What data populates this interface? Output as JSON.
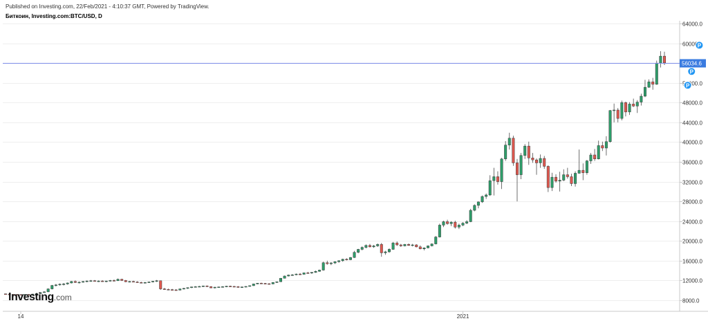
{
  "header": {
    "published": "Published on Investing.com, 22/Feb/2021 - 4:10:37 GMT, Powered by TradingView.",
    "symbol": "Биткоин, Investing.com:BTC/USD, D"
  },
  "logo": {
    "brand": "Investing",
    "domain": ".com"
  },
  "colors": {
    "up": "#26a69a",
    "down": "#ef5350",
    "up_fill": "#2e9e6a",
    "down_fill": "#e0584f",
    "price_line": "#7b8ce8",
    "price_label_bg": "#3a7be0",
    "marker": "#2196f3"
  },
  "chart_data": {
    "type": "candlestick",
    "title": "",
    "y_axis": {
      "position": "right",
      "ylim": [
        6000,
        65000
      ],
      "ticks": [
        8000,
        12000,
        16000,
        20000,
        24000,
        28000,
        32000,
        36000,
        40000,
        44000,
        48000,
        52000,
        56000,
        60000,
        64000
      ],
      "tick_labels": [
        "8000.0",
        "12000.0",
        "16000.0",
        "20000.0",
        "24000.0",
        "28000.0",
        "32000.0",
        "36000.0",
        "40000.0",
        "44000.0",
        "48000.0",
        "52000.0",
        "56000.0",
        "60000.0",
        "64000.0"
      ]
    },
    "x_axis": {
      "tick_labels": [
        "14",
        "2021"
      ]
    },
    "last_price": 56034.6,
    "last_price_label": "56034.6",
    "markers": [
      {
        "label": "P",
        "price": 51500,
        "candle_index": 176
      },
      {
        "label": "P",
        "price": 54300,
        "candle_index": 177
      },
      {
        "label": "P",
        "price": 59600,
        "candle_index": 179
      }
    ],
    "candles": [
      [
        9300,
        9350,
        9200,
        9250
      ],
      [
        9250,
        9300,
        9150,
        9200
      ],
      [
        9200,
        9250,
        9100,
        9180
      ],
      [
        9180,
        9250,
        9080,
        9150
      ],
      [
        9150,
        9220,
        9050,
        9120
      ],
      [
        9120,
        9200,
        9050,
        9180
      ],
      [
        9180,
        9250,
        9100,
        9150
      ],
      [
        9150,
        9300,
        9100,
        9250
      ],
      [
        9250,
        9400,
        9200,
        9350
      ],
      [
        9350,
        9600,
        9300,
        9550
      ],
      [
        9550,
        9800,
        9500,
        9700
      ],
      [
        9700,
        10400,
        9650,
        10300
      ],
      [
        10300,
        11100,
        10200,
        11000
      ],
      [
        11000,
        11300,
        10800,
        11100
      ],
      [
        11100,
        11400,
        10950,
        11250
      ],
      [
        11250,
        11500,
        11000,
        11300
      ],
      [
        11300,
        11600,
        11150,
        11500
      ],
      [
        11500,
        11900,
        11400,
        11800
      ],
      [
        11800,
        12000,
        11500,
        11600
      ],
      [
        11600,
        11800,
        11400,
        11650
      ],
      [
        11650,
        11900,
        11550,
        11800
      ],
      [
        11800,
        12000,
        11650,
        11900
      ],
      [
        11900,
        12100,
        11750,
        11950
      ],
      [
        11950,
        12100,
        11800,
        11850
      ],
      [
        11850,
        12000,
        11700,
        11900
      ],
      [
        11900,
        12050,
        11750,
        11800
      ],
      [
        11800,
        11950,
        11650,
        11900
      ],
      [
        11900,
        12100,
        11800,
        12000
      ],
      [
        12000,
        12200,
        11850,
        11950
      ],
      [
        11950,
        12400,
        11900,
        12250
      ],
      [
        12250,
        12350,
        11900,
        12000
      ],
      [
        12000,
        12100,
        11650,
        11750
      ],
      [
        11750,
        11900,
        11600,
        11800
      ],
      [
        11800,
        11950,
        11650,
        11700
      ],
      [
        11700,
        11850,
        11550,
        11600
      ],
      [
        11600,
        11750,
        11450,
        11550
      ],
      [
        11550,
        11700,
        11400,
        11600
      ],
      [
        11600,
        11800,
        11500,
        11700
      ],
      [
        11700,
        11900,
        11600,
        11850
      ],
      [
        11850,
        12100,
        11700,
        11950
      ],
      [
        11950,
        12000,
        10100,
        10300
      ],
      [
        10300,
        10500,
        10100,
        10200
      ],
      [
        10200,
        10350,
        10050,
        10150
      ],
      [
        10150,
        10300,
        10000,
        10100
      ],
      [
        10100,
        10250,
        9950,
        10050
      ],
      [
        10050,
        10350,
        10000,
        10300
      ],
      [
        10300,
        10500,
        10200,
        10400
      ],
      [
        10400,
        10600,
        10300,
        10550
      ],
      [
        10550,
        10750,
        10450,
        10700
      ],
      [
        10700,
        10850,
        10600,
        10750
      ],
      [
        10750,
        10900,
        10650,
        10800
      ],
      [
        10800,
        10950,
        10700,
        10900
      ],
      [
        10900,
        11000,
        10700,
        10750
      ],
      [
        10750,
        10850,
        10450,
        10500
      ],
      [
        10500,
        10700,
        10400,
        10650
      ],
      [
        10650,
        10750,
        10550,
        10700
      ],
      [
        10700,
        10850,
        10600,
        10750
      ],
      [
        10750,
        10900,
        10650,
        10850
      ],
      [
        10850,
        10950,
        10700,
        10800
      ],
      [
        10800,
        10900,
        10650,
        10750
      ],
      [
        10750,
        10850,
        10550,
        10600
      ],
      [
        10600,
        10750,
        10500,
        10700
      ],
      [
        10700,
        10850,
        10600,
        10800
      ],
      [
        10800,
        11000,
        10750,
        10950
      ],
      [
        10950,
        11350,
        10900,
        11300
      ],
      [
        11300,
        11500,
        11250,
        11450
      ],
      [
        11450,
        11550,
        11300,
        11400
      ],
      [
        11400,
        11500,
        11250,
        11350
      ],
      [
        11350,
        11450,
        11200,
        11300
      ],
      [
        11300,
        11650,
        11250,
        11600
      ],
      [
        11600,
        11800,
        11500,
        11750
      ],
      [
        11750,
        12500,
        11700,
        12450
      ],
      [
        12450,
        13000,
        12400,
        12900
      ],
      [
        12900,
        13200,
        12800,
        13100
      ],
      [
        13100,
        13300,
        12950,
        13150
      ],
      [
        13150,
        13400,
        13050,
        13300
      ],
      [
        13300,
        13500,
        13150,
        13250
      ],
      [
        13250,
        13600,
        13200,
        13550
      ],
      [
        13550,
        13750,
        13400,
        13500
      ],
      [
        13500,
        13700,
        13350,
        13650
      ],
      [
        13650,
        14000,
        13550,
        13850
      ],
      [
        13850,
        14200,
        13750,
        14100
      ],
      [
        14100,
        15800,
        14000,
        15600
      ],
      [
        15600,
        16000,
        15200,
        15400
      ],
      [
        15400,
        15700,
        15100,
        15550
      ],
      [
        15550,
        15900,
        15350,
        15800
      ],
      [
        15800,
        16100,
        15600,
        16000
      ],
      [
        16000,
        16400,
        15800,
        16300
      ],
      [
        16300,
        16500,
        16050,
        16200
      ],
      [
        16200,
        16750,
        16100,
        16650
      ],
      [
        16650,
        18000,
        16550,
        17700
      ],
      [
        17700,
        18400,
        17500,
        18300
      ],
      [
        18300,
        18900,
        18100,
        18700
      ],
      [
        18700,
        19300,
        18500,
        19100
      ],
      [
        19100,
        19400,
        18700,
        18800
      ],
      [
        18800,
        19200,
        18600,
        19000
      ],
      [
        19000,
        19500,
        18800,
        19300
      ],
      [
        19300,
        19600,
        16800,
        17600
      ],
      [
        17600,
        18000,
        17200,
        17800
      ],
      [
        17800,
        18500,
        17600,
        18300
      ],
      [
        18300,
        19800,
        18200,
        19600
      ],
      [
        19600,
        19900,
        19000,
        19200
      ],
      [
        19200,
        19400,
        18800,
        19000
      ],
      [
        19000,
        19400,
        18900,
        19300
      ],
      [
        19300,
        19500,
        19000,
        19100
      ],
      [
        19100,
        19400,
        18900,
        19200
      ],
      [
        19200,
        19350,
        18700,
        18800
      ],
      [
        18800,
        19100,
        18300,
        18400
      ],
      [
        18400,
        18700,
        18100,
        18600
      ],
      [
        18600,
        19100,
        18500,
        19000
      ],
      [
        19000,
        19500,
        18900,
        19400
      ],
      [
        19400,
        21000,
        19300,
        20800
      ],
      [
        20800,
        23500,
        20700,
        23200
      ],
      [
        23200,
        24100,
        22800,
        23900
      ],
      [
        23900,
        24300,
        23300,
        23500
      ],
      [
        23500,
        24000,
        23000,
        23800
      ],
      [
        23800,
        24100,
        22500,
        22800
      ],
      [
        22800,
        23500,
        22400,
        23200
      ],
      [
        23200,
        23800,
        23000,
        23600
      ],
      [
        23600,
        24200,
        23400,
        23900
      ],
      [
        23900,
        26500,
        23800,
        26200
      ],
      [
        26200,
        27400,
        26000,
        27200
      ],
      [
        27200,
        28000,
        26600,
        27900
      ],
      [
        27900,
        29200,
        27700,
        29000
      ],
      [
        29000,
        29600,
        28500,
        29300
      ],
      [
        29300,
        33300,
        29100,
        32200
      ],
      [
        32200,
        34800,
        29200,
        33000
      ],
      [
        33000,
        34100,
        31400,
        32000
      ],
      [
        32000,
        36800,
        30500,
        36600
      ],
      [
        36600,
        40200,
        36200,
        39400
      ],
      [
        39400,
        41900,
        38500,
        40800
      ],
      [
        40800,
        41300,
        35200,
        35800
      ],
      [
        35800,
        36600,
        28000,
        33400
      ],
      [
        33400,
        37800,
        32500,
        37300
      ],
      [
        37300,
        39600,
        36600,
        39200
      ],
      [
        39200,
        40100,
        35400,
        36800
      ],
      [
        36800,
        37800,
        35800,
        36400
      ],
      [
        36400,
        36700,
        33400,
        35800
      ],
      [
        35800,
        37500,
        34800,
        36700
      ],
      [
        36700,
        37200,
        34600,
        35100
      ],
      [
        35100,
        35300,
        29900,
        30800
      ],
      [
        30800,
        33800,
        30100,
        32900
      ],
      [
        32900,
        33500,
        31800,
        32100
      ],
      [
        32100,
        34000,
        30000,
        32300
      ],
      [
        32300,
        34500,
        32100,
        33400
      ],
      [
        33400,
        34800,
        32600,
        33000
      ],
      [
        33000,
        33600,
        31100,
        31600
      ],
      [
        31600,
        34100,
        31000,
        33700
      ],
      [
        33700,
        38500,
        33600,
        34300
      ],
      [
        34300,
        35700,
        32300,
        33800
      ],
      [
        33800,
        36400,
        33400,
        36200
      ],
      [
        36200,
        37800,
        35600,
        37400
      ],
      [
        37400,
        38600,
        36200,
        36600
      ],
      [
        36600,
        40300,
        36500,
        39300
      ],
      [
        39300,
        40100,
        38200,
        38800
      ],
      [
        38800,
        41200,
        37300,
        40100
      ],
      [
        40100,
        46500,
        39900,
        46400
      ],
      [
        46400,
        47800,
        44000,
        46500
      ],
      [
        46500,
        46900,
        44000,
        44800
      ],
      [
        44800,
        48400,
        44400,
        48000
      ],
      [
        48000,
        48200,
        45200,
        46100
      ],
      [
        46100,
        48100,
        45500,
        47700
      ],
      [
        47700,
        48800,
        47100,
        47300
      ],
      [
        47300,
        48500,
        45900,
        48100
      ],
      [
        48100,
        49800,
        47400,
        49300
      ],
      [
        49300,
        52600,
        49100,
        51100
      ],
      [
        51100,
        52700,
        51000,
        52200
      ],
      [
        52200,
        53000,
        50600,
        51700
      ],
      [
        51700,
        56500,
        51600,
        56000
      ],
      [
        56000,
        58400,
        55100,
        57400
      ],
      [
        57400,
        58300,
        55600,
        56034.6
      ]
    ]
  }
}
